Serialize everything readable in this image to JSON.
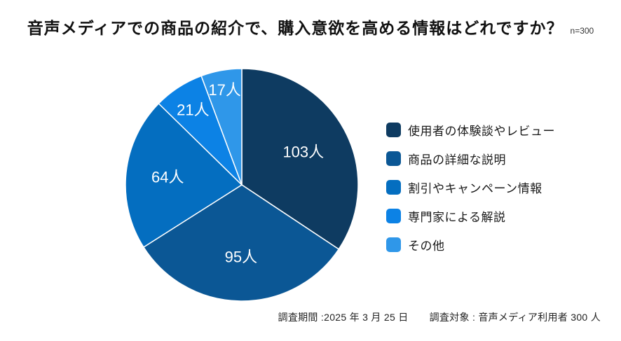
{
  "header": {
    "title": "音声メディアでの商品の紹介で、購入意欲を高める情報はどれですか？",
    "sample_size": "n=300"
  },
  "chart_data": {
    "type": "pie",
    "title": "音声メディアでの商品の紹介で、購入意欲を高める情報はどれですか？",
    "total": 300,
    "unit": "人",
    "categories": [
      "使用者の体験談やレビュー",
      "商品の詳細な説明",
      "割引やキャンペーン情報",
      "専門家による解説",
      "その他"
    ],
    "values": [
      103,
      95,
      64,
      21,
      17
    ],
    "slice_labels": [
      "103人",
      "95人",
      "64人",
      "21人",
      "17人"
    ],
    "colors": [
      "#0E3B61",
      "#0B5795",
      "#046EC0",
      "#0C82E5",
      "#2F97E9"
    ],
    "start_angle_deg": 0,
    "direction": "clockwise",
    "legend_position": "right",
    "slice_label_color": "#FFFFFF",
    "slice_border_color": "#FFFFFF",
    "slice_label_radius_fraction": [
      0.6,
      0.62,
      0.64,
      0.77,
      0.83
    ]
  },
  "footer": {
    "survey_period": "調査期間 :2025 年 3 月 25 日",
    "survey_target": "調査対象 : 音声メディア利用者 300 人"
  }
}
